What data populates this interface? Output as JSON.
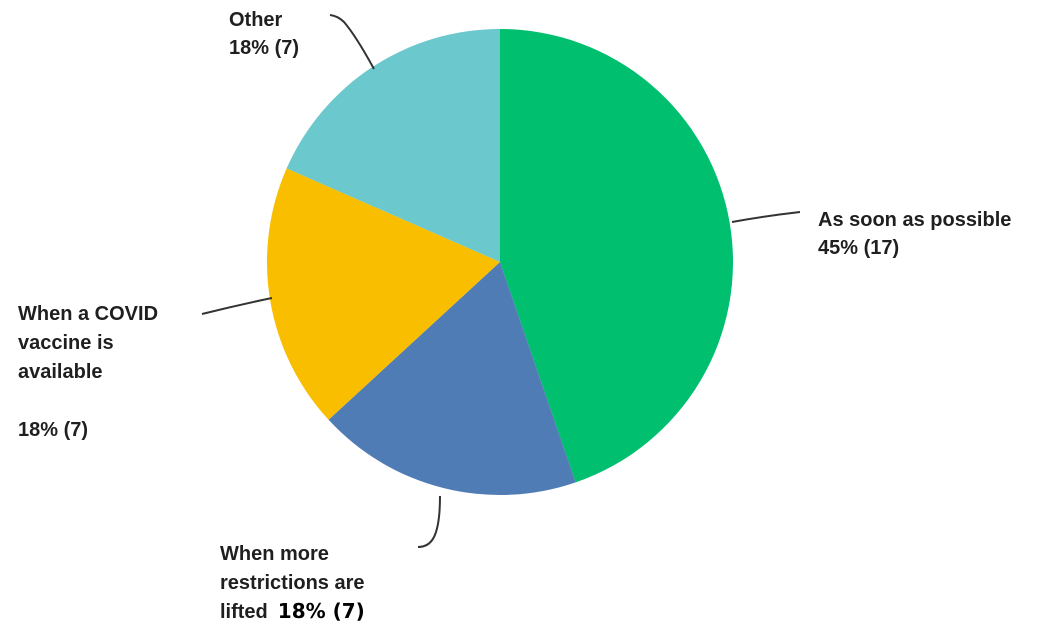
{
  "chart_data": {
    "type": "pie",
    "start_angle": "12 o'clock",
    "direction": "clockwise",
    "legend": "none",
    "slices": [
      {
        "category": "As soon as possible",
        "percent": 45,
        "count": 17,
        "color": "#00BF6F",
        "label_lines": [
          "As soon as possible",
          "45% (17)"
        ]
      },
      {
        "category": "When more restrictions are lifted",
        "percent": 18,
        "count": 7,
        "color": "#507CB6",
        "label_lines": [
          "When more",
          "restrictions are",
          "lifted"
        ],
        "label_value": "18% (7)"
      },
      {
        "category": "When a COVID vaccine is available",
        "percent": 18,
        "count": 7,
        "color": "#F9BE00",
        "label_lines": [
          "When a COVID",
          "vaccine is",
          "available",
          "",
          "18% (7)"
        ]
      },
      {
        "category": "Other",
        "percent": 18,
        "count": 7,
        "color": "#6BC8CD",
        "label_lines": [
          "Other",
          "18% (7)"
        ]
      }
    ]
  }
}
